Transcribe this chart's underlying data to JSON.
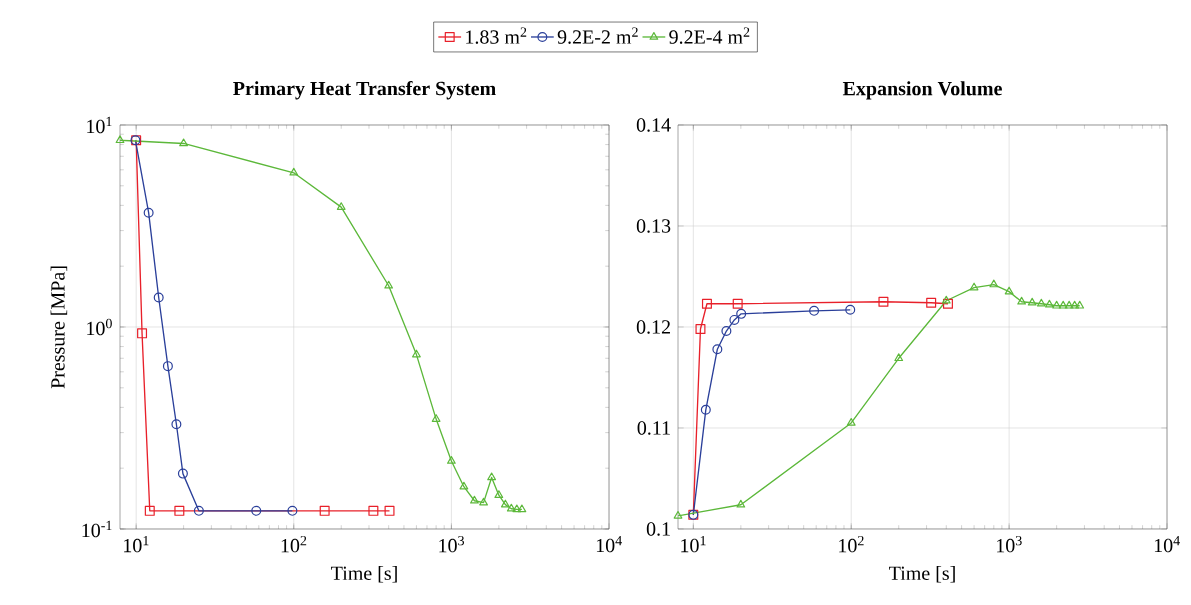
{
  "chart_data": [
    {
      "type": "line",
      "title": "Primary Heat Transfer System",
      "xlabel": "Time [s]",
      "ylabel": "Pressure [MPa]",
      "log": "xy",
      "grid": true,
      "legend": "top",
      "line_style": "solid",
      "xlim": [
        7.9,
        10000
      ],
      "ylim": [
        0.1,
        10
      ],
      "xticks": [
        {
          "value": 10,
          "label": "10$^{1}$"
        },
        {
          "value": 100,
          "label": "10$^{2}$"
        },
        {
          "value": 1000,
          "label": "10$^{3}$"
        },
        {
          "value": 10000,
          "label": "10$^{4}$"
        }
      ],
      "yticks": [
        {
          "value": 0.1,
          "label": "10$^{-1}$"
        },
        {
          "value": 1,
          "label": "10$^{0}$"
        },
        {
          "value": 10,
          "label": "10$^{1}$"
        }
      ],
      "series": [
        {
          "name": "1.83 m$^{2}$",
          "color": "#e8202a",
          "marker": "square",
          "x": [
            10,
            10.9,
            12.2,
            18.8,
            157,
            320,
            405
          ],
          "values": [
            8.4,
            0.93,
            0.123,
            0.123,
            0.123,
            0.123,
            0.123
          ]
        },
        {
          "name": "9.2E-2 m$^{2}$",
          "color": "#2a3f9a",
          "marker": "circle",
          "x": [
            9.9,
            12,
            13.9,
            15.9,
            18,
            19.8,
            25,
            57.8,
            98
          ],
          "values": [
            8.4,
            3.68,
            1.4,
            0.64,
            0.33,
            0.188,
            0.123,
            0.123,
            0.123
          ]
        },
        {
          "name": "9.2E-4 m$^{2}$",
          "color": "#5cb83a",
          "marker": "triangle",
          "x": [
            7.9,
            20,
            100,
            200,
            400,
            600,
            800,
            1000,
            1200,
            1400,
            1600,
            1800,
            2000,
            2200,
            2400,
            2600,
            2800
          ],
          "values": [
            8.4,
            8.1,
            5.8,
            3.92,
            1.6,
            0.73,
            0.35,
            0.217,
            0.162,
            0.138,
            0.135,
            0.18,
            0.147,
            0.132,
            0.126,
            0.125,
            0.125
          ]
        }
      ]
    },
    {
      "type": "line",
      "title": "Expansion Volume",
      "xlabel": "Time [s]",
      "log": "x",
      "grid": true,
      "line_style": "solid",
      "xlim": [
        8,
        10000
      ],
      "ylim": [
        0.1,
        0.14
      ],
      "xticks": [
        {
          "value": 10,
          "label": "10$^{1}$"
        },
        {
          "value": 100,
          "label": "10$^{2}$"
        },
        {
          "value": 1000,
          "label": "10$^{3}$"
        },
        {
          "value": 10000,
          "label": "10$^{4}$"
        }
      ],
      "yticks": [
        0.1,
        0.11,
        0.12,
        0.13,
        0.14
      ],
      "series": [
        {
          "color": "#e8202a",
          "marker": "square",
          "x": [
            10,
            11.1,
            12.2,
            19.1,
            160,
            321,
            410
          ],
          "values": [
            0.1014,
            0.1198,
            0.1223,
            0.1223,
            0.1225,
            0.1224,
            0.1223
          ]
        },
        {
          "color": "#2a3f9a",
          "marker": "circle",
          "x": [
            10,
            12,
            14.2,
            16.2,
            18.2,
            20.1,
            58.2,
            98.6
          ],
          "values": [
            0.1014,
            0.1118,
            0.1178,
            0.1196,
            0.1207,
            0.1213,
            0.1216,
            0.1217
          ]
        },
        {
          "color": "#5cb83a",
          "marker": "triangle",
          "x": [
            8,
            20,
            100,
            200,
            400,
            600,
            800,
            1000,
            1200,
            1400,
            1600,
            1800,
            2000,
            2200,
            2400,
            2600,
            2800
          ],
          "values": [
            0.1013,
            0.1024,
            0.1105,
            0.1169,
            0.1226,
            0.1239,
            0.1242,
            0.1235,
            0.1225,
            0.1224,
            0.1223,
            0.1222,
            0.1221,
            0.1221,
            0.1221,
            0.1221,
            0.1221
          ]
        }
      ]
    }
  ]
}
